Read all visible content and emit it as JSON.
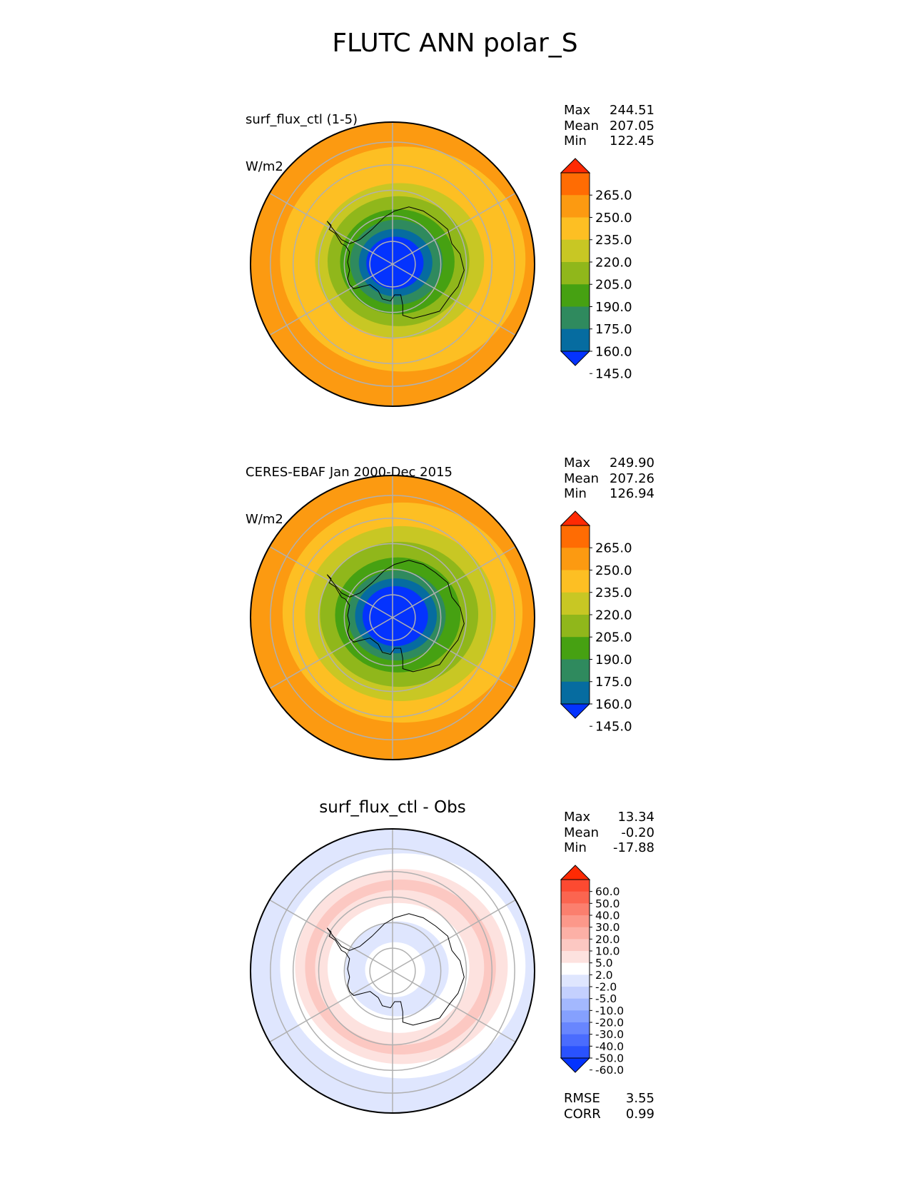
{
  "figure_title": "FLUTC ANN polar_S",
  "panels": [
    {
      "title_line1": "surf_flux_ctl (1-5)",
      "title_line2": "W/m2",
      "stats": [
        {
          "label": "Max",
          "value": "244.51"
        },
        {
          "label": "Mean",
          "value": "207.05"
        },
        {
          "label": "Min",
          "value": "122.45"
        }
      ]
    },
    {
      "title_line1": "CERES-EBAF Jan 2000-Dec 2015",
      "title_line2": "W/m2",
      "stats": [
        {
          "label": "Max",
          "value": "249.90"
        },
        {
          "label": "Mean",
          "value": "207.26"
        },
        {
          "label": "Min",
          "value": "126.94"
        }
      ]
    },
    {
      "title_center": "surf_flux_ctl - Obs",
      "stats": [
        {
          "label": "Max",
          "value": "13.34"
        },
        {
          "label": "Mean",
          "value": "-0.20"
        },
        {
          "label": "Min",
          "value": "-17.88"
        }
      ],
      "extra_stats": [
        {
          "label": "RMSE",
          "value": "3.55"
        },
        {
          "label": "CORR",
          "value": "0.99"
        }
      ]
    }
  ],
  "chart_data": [
    {
      "type": "heatmap",
      "projection": "south-polar-stereographic",
      "colorbar": {
        "levels": [
          145.0,
          160.0,
          175.0,
          190.0,
          205.0,
          220.0,
          235.0,
          250.0,
          265.0
        ],
        "tick_labels": [
          "265.0",
          "250.0",
          "235.0",
          "220.0",
          "205.0",
          "190.0",
          "175.0",
          "160.0",
          "145.0"
        ],
        "colors": [
          "#0433fe",
          "#066ca0",
          "#2f8a5e",
          "#46a112",
          "#90b71b",
          "#c8c724",
          "#fdbf23",
          "#fc9a11",
          "#ff6c03",
          "#ff2a03"
        ],
        "extend": "both"
      },
      "zones": [
        {
          "r_frac": 1.0,
          "band": 7
        },
        {
          "r_frac": 0.9,
          "band": 6
        },
        {
          "r_frac": 0.62,
          "band": 5
        },
        {
          "r_frac": 0.52,
          "band": 4
        },
        {
          "r_frac": 0.42,
          "band": 3
        },
        {
          "r_frac": 0.34,
          "band": 2
        },
        {
          "r_frac": 0.27,
          "band": 1
        },
        {
          "r_frac": 0.21,
          "band": 0
        }
      ]
    },
    {
      "type": "heatmap",
      "projection": "south-polar-stereographic",
      "colorbar": {
        "levels": [
          145.0,
          160.0,
          175.0,
          190.0,
          205.0,
          220.0,
          235.0,
          250.0,
          265.0
        ],
        "tick_labels": [
          "265.0",
          "250.0",
          "235.0",
          "220.0",
          "205.0",
          "190.0",
          "175.0",
          "160.0",
          "145.0"
        ],
        "colors": [
          "#0433fe",
          "#066ca0",
          "#2f8a5e",
          "#46a112",
          "#90b71b",
          "#c8c724",
          "#fdbf23",
          "#fc9a11",
          "#ff6c03",
          "#ff2a03"
        ],
        "extend": "both"
      },
      "zones": [
        {
          "r_frac": 1.0,
          "band": 7
        },
        {
          "r_frac": 0.88,
          "band": 6
        },
        {
          "r_frac": 0.7,
          "band": 5
        },
        {
          "r_frac": 0.58,
          "band": 4
        },
        {
          "r_frac": 0.46,
          "band": 3
        },
        {
          "r_frac": 0.36,
          "band": 2
        },
        {
          "r_frac": 0.3,
          "band": 1
        },
        {
          "r_frac": 0.24,
          "band": 0
        }
      ]
    },
    {
      "type": "heatmap",
      "projection": "south-polar-stereographic",
      "colorbar": {
        "levels": [
          -60.0,
          -50.0,
          -40.0,
          -30.0,
          -20.0,
          -10.0,
          -5.0,
          -2.0,
          2.0,
          5.0,
          10.0,
          20.0,
          30.0,
          40.0,
          50.0,
          60.0
        ],
        "tick_labels": [
          "60.0",
          "50.0",
          "40.0",
          "30.0",
          "20.0",
          "10.0",
          "5.0",
          "2.0",
          "-2.0",
          "-5.0",
          "-10.0",
          "-20.0",
          "-30.0",
          "-40.0",
          "-50.0",
          "-60.0"
        ],
        "colors": [
          "#0433fe",
          "#2a52fe",
          "#4a6cfe",
          "#6886fe",
          "#85a0fe",
          "#a3b8fe",
          "#c4d0fe",
          "#dfe6fe",
          "#ffffff",
          "#fde2df",
          "#fcc8c2",
          "#fcb0a6",
          "#fc988a",
          "#fb7f6e",
          "#fb6550",
          "#fc4a31",
          "#ff2a03"
        ],
        "extend": "both"
      },
      "zones": [
        {
          "r_frac": 1.0,
          "band": 7
        },
        {
          "r_frac": 0.9,
          "band": 8
        },
        {
          "r_frac": 0.78,
          "band": 9
        },
        {
          "r_frac": 0.7,
          "band": 10
        },
        {
          "r_frac": 0.62,
          "band": 9
        },
        {
          "r_frac": 0.52,
          "band": 8
        },
        {
          "r_frac": 0.38,
          "band": 7
        },
        {
          "r_frac": 0.22,
          "band": 8
        }
      ]
    }
  ]
}
